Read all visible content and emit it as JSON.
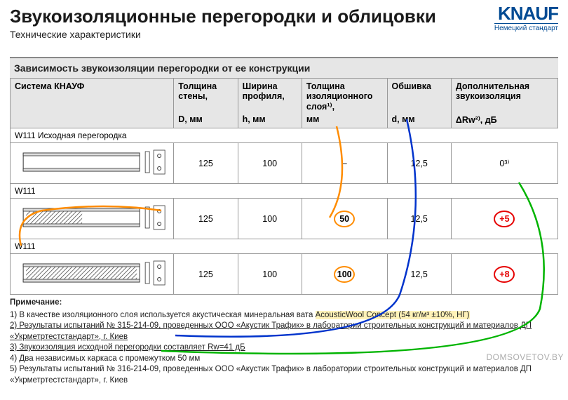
{
  "header": {
    "title": "Звукоизоляционные перегородки и облицовки",
    "subtitle": "Технические характеристики"
  },
  "logo": {
    "brand": "KNAUF",
    "tagline": "Немецкий стандарт"
  },
  "section_title": "Зависимость звукоизоляции перегородки от ее конструкции",
  "columns": {
    "system": {
      "label": "Система КНАУФ",
      "unit": ""
    },
    "thickness": {
      "label": "Толщина стены,",
      "unit": "D, мм"
    },
    "profile": {
      "label": "Ширина профиля,",
      "unit": "h, мм"
    },
    "iso": {
      "label": "Толщина изоляционного слоя¹⁾,",
      "unit": "мм"
    },
    "sheath": {
      "label": "Обшивка",
      "unit": "d, мм"
    },
    "extra": {
      "label": "Дополнительная звукоизоляция",
      "unit": "ΔRw²⁾, дБ"
    }
  },
  "rows": [
    {
      "system_label": "W111 Исходная перегородка",
      "thickness": "125",
      "profile": "100",
      "iso": "–",
      "sheath": "12,5",
      "extra": "0³⁾",
      "iso_circle": false,
      "extra_circle": false,
      "hatch": "none"
    },
    {
      "system_label": "W111",
      "thickness": "125",
      "profile": "100",
      "iso": "50",
      "sheath": "12,5",
      "extra": "+5",
      "iso_circle": true,
      "extra_circle": true,
      "hatch": "half"
    },
    {
      "system_label": "W111",
      "thickness": "125",
      "profile": "100",
      "iso": "100",
      "sheath": "12,5",
      "extra": "+8",
      "iso_circle": true,
      "extra_circle": true,
      "hatch": "full"
    }
  ],
  "style": {
    "iso_circle_color": "#ff8c00",
    "extra_circle_color": "#e60000",
    "header_bg": "#e6e6e6",
    "border_color": "#999999",
    "brand_color": "#004a93",
    "highlight_bg": "#fff2b8",
    "annot_colors": {
      "orange": "#ff8c00",
      "blue": "#0033cc",
      "green": "#00b400"
    }
  },
  "notes": {
    "title": "Примечание:",
    "items": [
      {
        "text": "1) В качестве изоляционного слоя используется акустическая минеральная вата AcousticWool Concept (54 кг/м³ ±10%, НГ)",
        "highlight": true
      },
      {
        "text": "2) Результаты испытаний № 315-214-09, проведенных ООО «Акустик Трафик» в лаборатории строительных конструкций и материалов ДП «Укрметртестстандарт», г. Киев",
        "underline_first": true
      },
      {
        "text": "3) Звукоизоляция исходной перегородки составляет Rw=41 дБ",
        "underline_first": true
      },
      {
        "text": "4) Два независимых каркаса с промежутком 50 мм"
      },
      {
        "text": "5) Результаты испытаний № 316-214-09, проведенных ООО «Акустик Трафик» в лаборатории строительных конструкций и материалов ДП «Укрметртестстандарт», г. Киев"
      }
    ]
  },
  "watermark": "DOMSOVETOV.BY"
}
